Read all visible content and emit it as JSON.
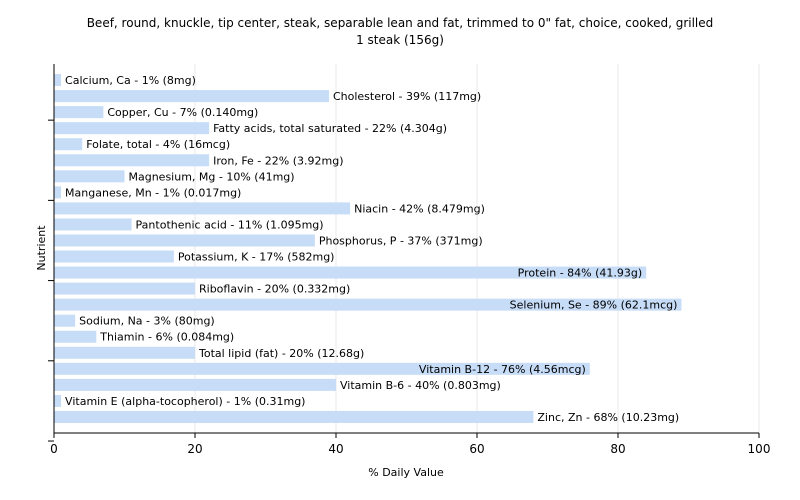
{
  "chart_data": {
    "type": "bar",
    "orientation": "horizontal",
    "title": "Beef, round, knuckle, tip center, steak, separable lean and fat, trimmed to 0\" fat, choice, cooked, grilled",
    "subtitle": "1 steak (156g)",
    "xlabel": "% Daily Value",
    "ylabel": "Nutrient",
    "xlim": [
      0,
      100
    ],
    "xticks": [
      0,
      20,
      40,
      60,
      80,
      100
    ],
    "grid": "vertical",
    "bar_color": "#c6dcf7",
    "categories": [
      "Calcium, Ca",
      "Cholesterol",
      "Copper, Cu",
      "Fatty acids, total saturated",
      "Folate, total",
      "Iron, Fe",
      "Magnesium, Mg",
      "Manganese, Mn",
      "Niacin",
      "Pantothenic acid",
      "Phosphorus, P",
      "Potassium, K",
      "Protein",
      "Riboflavin",
      "Selenium, Se",
      "Sodium, Na",
      "Thiamin",
      "Total lipid (fat)",
      "Vitamin B-12",
      "Vitamin B-6",
      "Vitamin E (alpha-tocopherol)",
      "Zinc, Zn"
    ],
    "values": [
      1,
      39,
      7,
      22,
      4,
      22,
      10,
      1,
      42,
      11,
      37,
      17,
      84,
      20,
      89,
      3,
      6,
      20,
      76,
      40,
      1,
      68
    ],
    "labels": [
      "Calcium, Ca - 1% (8mg)",
      "Cholesterol - 39% (117mg)",
      "Copper, Cu - 7% (0.140mg)",
      "Fatty acids, total saturated - 22% (4.304g)",
      "Folate, total - 4% (16mcg)",
      "Iron, Fe - 22% (3.92mg)",
      "Magnesium, Mg - 10% (41mg)",
      "Manganese, Mn - 1% (0.017mg)",
      "Niacin - 42% (8.479mg)",
      "Pantothenic acid - 11% (1.095mg)",
      "Phosphorus, P - 37% (371mg)",
      "Potassium, K - 17% (582mg)",
      "Protein - 84% (41.93g)",
      "Riboflavin - 20% (0.332mg)",
      "Selenium, Se - 89% (62.1mcg)",
      "Sodium, Na - 3% (80mg)",
      "Thiamin - 6% (0.084mg)",
      "Total lipid (fat) - 20% (12.68g)",
      "Vitamin B-12 - 76% (4.56mcg)",
      "Vitamin B-6 - 40% (0.803mg)",
      "Vitamin E (alpha-tocopherol) - 1% (0.31mg)",
      "Zinc, Zn - 68% (10.23mg)"
    ]
  }
}
